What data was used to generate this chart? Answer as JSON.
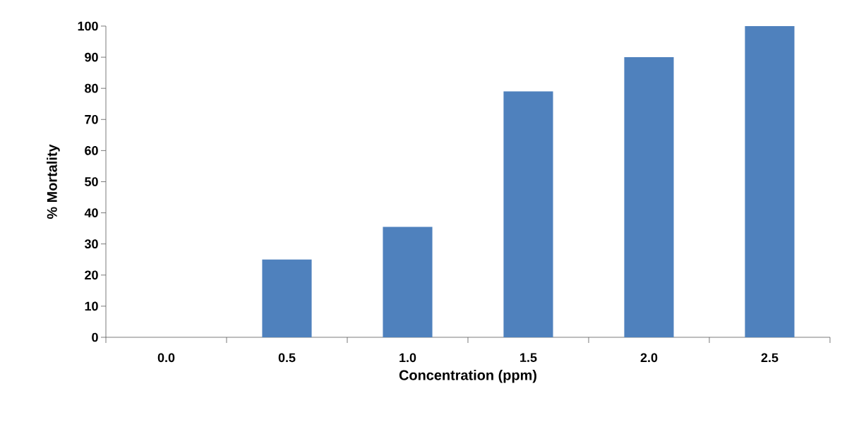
{
  "chart_data": {
    "type": "bar",
    "xlabel": "Concentration (ppm)",
    "ylabel": "% Mortality",
    "categories": [
      "0.0",
      "0.5",
      "1.0",
      "1.5",
      "2.0",
      "2.5"
    ],
    "values": [
      0,
      25,
      35.5,
      79,
      90,
      100
    ],
    "color": "#4f81bd",
    "ylim": [
      0,
      100
    ],
    "yticks": [
      0,
      10,
      20,
      30,
      40,
      50,
      60,
      70,
      80,
      90,
      100
    ],
    "grid": false
  }
}
